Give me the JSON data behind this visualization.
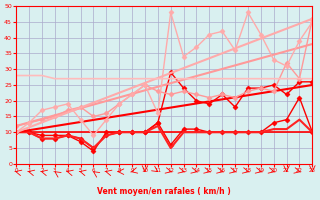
{
  "xlabel": "Vent moyen/en rafales ( km/h )",
  "background_color": "#d9f0f0",
  "grid_color": "#aaaacc",
  "xlim": [
    0,
    23
  ],
  "ylim": [
    0,
    50
  ],
  "yticks": [
    0,
    5,
    10,
    15,
    20,
    25,
    30,
    35,
    40,
    45,
    50
  ],
  "xticks": [
    0,
    1,
    2,
    3,
    4,
    5,
    6,
    7,
    8,
    9,
    10,
    11,
    12,
    13,
    14,
    15,
    16,
    17,
    18,
    19,
    20,
    21,
    22,
    23
  ],
  "lines": [
    {
      "x": [
        0,
        1,
        2,
        3,
        4,
        5,
        6,
        7,
        8,
        9,
        10,
        11,
        12,
        13,
        14,
        15,
        16,
        17,
        18,
        19,
        20,
        21,
        22,
        23
      ],
      "y": [
        10,
        10,
        10,
        10,
        10,
        10,
        10,
        10,
        10,
        10,
        10,
        10,
        10,
        10,
        10,
        10,
        10,
        10,
        10,
        10,
        10,
        10,
        10,
        10
      ],
      "color": "#ff0000",
      "lw": 1.2,
      "marker": null,
      "ls": "-"
    },
    {
      "x": [
        0,
        1,
        2,
        3,
        4,
        5,
        6,
        7,
        8,
        9,
        10,
        11,
        12,
        13,
        14,
        15,
        16,
        17,
        18,
        19,
        20,
        21,
        22,
        23
      ],
      "y": [
        10,
        10,
        9,
        9,
        9,
        7,
        4,
        10,
        10,
        10,
        10,
        13,
        29,
        24,
        20,
        19,
        22,
        18,
        24,
        24,
        25,
        22,
        26,
        26
      ],
      "color": "#ff0000",
      "lw": 1.0,
      "marker": "D",
      "ms": 2.5,
      "ls": "-"
    },
    {
      "x": [
        0,
        1,
        2,
        3,
        4,
        5,
        6,
        7,
        8,
        9,
        10,
        11,
        12,
        13,
        14,
        15,
        16,
        17,
        18,
        19,
        20,
        21,
        22,
        23
      ],
      "y": [
        10,
        10,
        8,
        8,
        9,
        8,
        5,
        9,
        10,
        10,
        10,
        13,
        6,
        11,
        11,
        10,
        10,
        10,
        10,
        10,
        13,
        14,
        21,
        10
      ],
      "color": "#ff0000",
      "lw": 1.0,
      "marker": "D",
      "ms": 2.5,
      "ls": "-"
    },
    {
      "x": [
        0,
        1,
        2,
        3,
        4,
        5,
        6,
        7,
        8,
        9,
        10,
        11,
        12,
        13,
        14,
        15,
        16,
        17,
        18,
        19,
        20,
        21,
        22,
        23
      ],
      "y": [
        10,
        10,
        8,
        8,
        9,
        8,
        5,
        9,
        10,
        10,
        10,
        12,
        5,
        10,
        10,
        10,
        10,
        10,
        10,
        10,
        11,
        11,
        14,
        10
      ],
      "color": "#ff2222",
      "lw": 1.5,
      "marker": null,
      "ls": "-"
    },
    {
      "x": [
        0,
        23
      ],
      "y": [
        10,
        25
      ],
      "color": "#ff0000",
      "lw": 1.5,
      "marker": null,
      "ls": "-"
    },
    {
      "x": [
        0,
        1,
        2,
        3,
        4,
        5,
        6,
        7,
        8,
        9,
        10,
        11,
        12,
        13,
        14,
        15,
        16,
        17,
        18,
        19,
        20,
        21,
        22,
        23
      ],
      "y": [
        12,
        13,
        14,
        15,
        17,
        18,
        15,
        16,
        19,
        22,
        25,
        23,
        22,
        23,
        22,
        21,
        22,
        21,
        23,
        24,
        23,
        32,
        27,
        46
      ],
      "color": "#ff9999",
      "lw": 1.0,
      "marker": "D",
      "ms": 2.5,
      "ls": "-"
    },
    {
      "x": [
        0,
        23
      ],
      "y": [
        12,
        38
      ],
      "color": "#ff9999",
      "lw": 1.5,
      "marker": null,
      "ls": "-"
    },
    {
      "x": [
        0,
        1,
        2,
        3,
        4,
        5,
        6,
        7,
        8,
        9,
        10,
        11,
        12,
        13,
        14,
        15,
        16,
        17,
        18,
        19,
        20,
        21,
        22,
        23
      ],
      "y": [
        10,
        13,
        17,
        18,
        19,
        14,
        9,
        14,
        19,
        22,
        25,
        16,
        48,
        34,
        37,
        41,
        42,
        36,
        48,
        41,
        33,
        31,
        39,
        45
      ],
      "color": "#ffaaaa",
      "lw": 1.0,
      "marker": "D",
      "ms": 2.5,
      "ls": "-"
    },
    {
      "x": [
        0,
        23
      ],
      "y": [
        10,
        46
      ],
      "color": "#ffaaaa",
      "lw": 1.5,
      "marker": null,
      "ls": "-"
    },
    {
      "x": [
        0,
        1,
        2,
        3,
        4,
        5,
        6,
        7,
        8,
        9,
        10,
        11,
        12,
        13,
        14,
        15,
        16,
        17,
        18,
        19,
        20,
        21,
        22,
        23
      ],
      "y": [
        28,
        28,
        28,
        27,
        27,
        27,
        27,
        27,
        27,
        27,
        27,
        27,
        27,
        27,
        27,
        27,
        27,
        27,
        27,
        27,
        27,
        27,
        27,
        27
      ],
      "color": "#ffbbbb",
      "lw": 1.2,
      "marker": null,
      "ls": "-"
    }
  ],
  "wind_arrows": {
    "x": [
      0,
      1,
      2,
      3,
      4,
      5,
      6,
      7,
      8,
      9,
      10,
      11,
      12,
      13,
      14,
      15,
      16,
      17,
      18,
      19,
      20,
      21,
      22,
      23
    ],
    "angles": [
      225,
      225,
      225,
      200,
      225,
      225,
      200,
      225,
      270,
      315,
      0,
      20,
      45,
      45,
      45,
      45,
      45,
      45,
      45,
      45,
      45,
      0,
      45,
      0
    ]
  }
}
